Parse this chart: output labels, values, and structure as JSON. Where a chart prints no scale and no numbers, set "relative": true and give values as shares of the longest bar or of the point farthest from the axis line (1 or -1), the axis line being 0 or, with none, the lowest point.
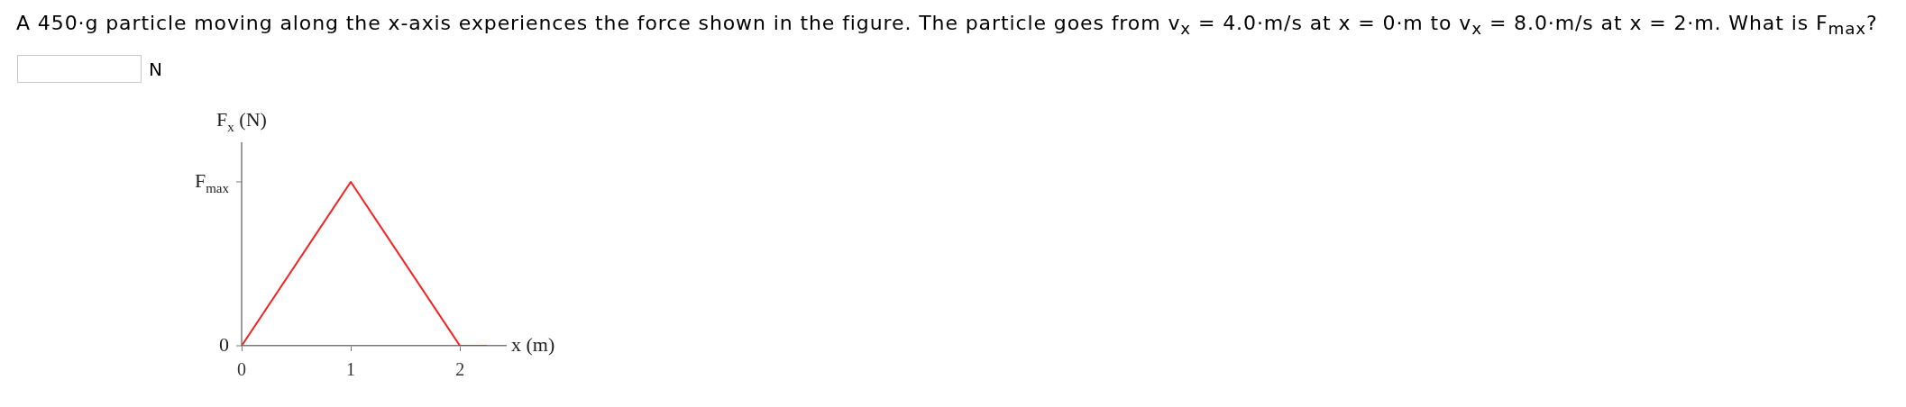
{
  "chart_data": {
    "type": "line",
    "title": "A 450·g particle moving along the x-axis experiences the force shown in the figure. The particle goes from v$_{x}$ = 4.0·m/s at x = 0·m to v$_{x}$ = 8.0·m/s at x = 2·m. What is F$_{max}$?",
    "xlabel": "x (m)",
    "ylabel": "F$_{x}$ (N)",
    "annotations": [
      "N",
      {
        "text": "0",
        "x": 0,
        "y": 0
      },
      "F$_{max}$"
    ],
    "x": [
      0,
      1,
      2,
      2.24
    ],
    "values": [
      0,
      1,
      0,
      0
    ],
    "color": "#f52020",
    "relative": true,
    "xlim": [
      0,
      2.42
    ],
    "xticks": [
      0,
      1,
      2
    ],
    "marker": "none",
    "line_style": "solid",
    "legend": false
  }
}
